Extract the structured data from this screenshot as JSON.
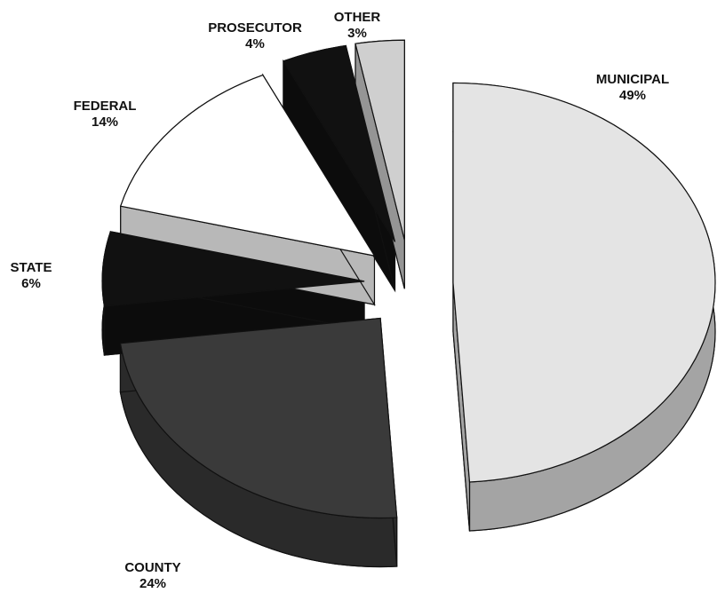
{
  "chart_data": {
    "type": "pie",
    "categories": [
      "MUNICIPAL",
      "COUNTY",
      "STATE",
      "FEDERAL",
      "PROSECUTOR",
      "OTHER"
    ],
    "values": [
      49,
      24,
      6,
      14,
      4,
      3
    ],
    "value_labels": [
      "49%",
      "24%",
      "6%",
      "14%",
      "4%",
      "3%"
    ],
    "colors": [
      "#e4e4e4",
      "#3a3a3a",
      "#111111",
      "#ffffff",
      "#111111",
      "#cfcfcf"
    ]
  }
}
